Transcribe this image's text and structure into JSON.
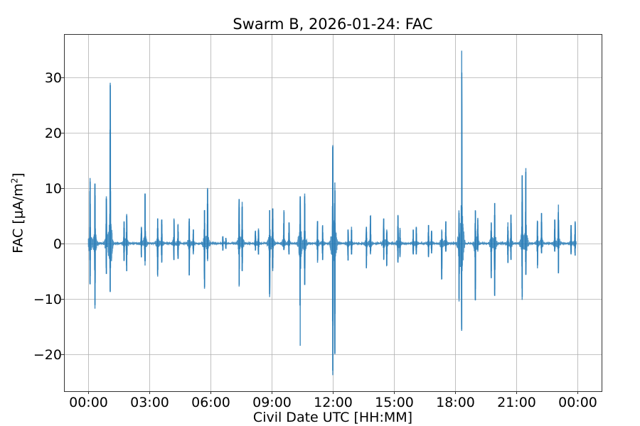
{
  "chart_data": {
    "type": "line",
    "title": "Swarm B, 2026-01-24: FAC",
    "xlabel": "Civil Date UTC [HH:MM]",
    "ylabel": "FAC [μA/m²]",
    "ylabel_base": "FAC [μA/m",
    "ylabel_sup": "2",
    "ylabel_close": "]",
    "xlim_hours": [
      -1.2,
      25.2
    ],
    "ylim": [
      -26.7,
      37.8
    ],
    "grid": true,
    "legend": null,
    "line_color": "#1f77b4",
    "line_alpha": 0.8,
    "x_ticks": [
      {
        "hour": 0,
        "label": "00:00"
      },
      {
        "hour": 3,
        "label": "03:00"
      },
      {
        "hour": 6,
        "label": "06:00"
      },
      {
        "hour": 9,
        "label": "09:00"
      },
      {
        "hour": 12,
        "label": "12:00"
      },
      {
        "hour": 15,
        "label": "15:00"
      },
      {
        "hour": 18,
        "label": "18:00"
      },
      {
        "hour": 21,
        "label": "21:00"
      },
      {
        "hour": 24,
        "label": "00:00"
      }
    ],
    "y_ticks": [
      {
        "value": 30,
        "label": "30"
      },
      {
        "value": 20,
        "label": "20"
      },
      {
        "value": 10,
        "label": "10"
      },
      {
        "value": 0,
        "label": "0"
      },
      {
        "value": -10,
        "label": "−10"
      },
      {
        "value": -20,
        "label": "−20"
      }
    ],
    "series": [
      {
        "name": "FAC",
        "description": "Field-aligned current bursts at each auroral-oval crossing; near zero between",
        "bursts": [
          {
            "t": 0.08,
            "max": 11.8,
            "min": -7.4
          },
          {
            "t": 0.32,
            "max": 10.8,
            "min": -11.8
          },
          {
            "t": 0.88,
            "max": 8.5,
            "min": -5.5
          },
          {
            "t": 1.07,
            "max": 29.0,
            "min": -8.8
          },
          {
            "t": 1.75,
            "max": 4.0,
            "min": -3.2
          },
          {
            "t": 1.88,
            "max": 5.3,
            "min": -5.0
          },
          {
            "t": 2.6,
            "max": 3.0,
            "min": -2.5
          },
          {
            "t": 2.78,
            "max": 9.0,
            "min": -4.0
          },
          {
            "t": 3.4,
            "max": 4.5,
            "min": -6.0
          },
          {
            "t": 3.6,
            "max": 4.3,
            "min": -3.5
          },
          {
            "t": 4.2,
            "max": 4.5,
            "min": -3.0
          },
          {
            "t": 4.4,
            "max": 3.5,
            "min": -2.8
          },
          {
            "t": 4.95,
            "max": 4.5,
            "min": -5.8
          },
          {
            "t": 5.15,
            "max": 2.5,
            "min": -2.0
          },
          {
            "t": 5.7,
            "max": 6.0,
            "min": -8.2
          },
          {
            "t": 5.85,
            "max": 10.0,
            "min": -3.2
          },
          {
            "t": 6.6,
            "max": 1.3,
            "min": -1.3
          },
          {
            "t": 6.75,
            "max": 1.0,
            "min": -1.0
          },
          {
            "t": 7.4,
            "max": 8.0,
            "min": -7.8
          },
          {
            "t": 7.55,
            "max": 7.5,
            "min": -5.0
          },
          {
            "t": 8.2,
            "max": 2.3,
            "min": -1.3
          },
          {
            "t": 8.35,
            "max": 2.7,
            "min": -2.0
          },
          {
            "t": 8.9,
            "max": 6.0,
            "min": -9.7
          },
          {
            "t": 9.05,
            "max": 6.3,
            "min": -5.0
          },
          {
            "t": 9.6,
            "max": 6.0,
            "min": -1.2
          },
          {
            "t": 9.85,
            "max": 3.8,
            "min": -2.0
          },
          {
            "t": 10.4,
            "max": 8.5,
            "min": -18.5
          },
          {
            "t": 10.62,
            "max": 9.0,
            "min": -7.5
          },
          {
            "t": 11.25,
            "max": 4.0,
            "min": -3.5
          },
          {
            "t": 11.5,
            "max": 3.3,
            "min": -3.0
          },
          {
            "t": 12.0,
            "max": 17.5,
            "min": -23.8
          },
          {
            "t": 12.1,
            "max": 11.0,
            "min": -20.0
          },
          {
            "t": 12.75,
            "max": 2.5,
            "min": -3.1
          },
          {
            "t": 12.92,
            "max": 3.0,
            "min": -2.0
          },
          {
            "t": 13.65,
            "max": 3.0,
            "min": -4.5
          },
          {
            "t": 13.85,
            "max": 5.0,
            "min": -2.0
          },
          {
            "t": 14.5,
            "max": 4.5,
            "min": -3.0
          },
          {
            "t": 14.65,
            "max": 2.5,
            "min": -4.0
          },
          {
            "t": 15.2,
            "max": 5.0,
            "min": -3.5
          },
          {
            "t": 15.3,
            "max": 2.8,
            "min": -2.5
          },
          {
            "t": 15.95,
            "max": 2.5,
            "min": -2.0
          },
          {
            "t": 16.1,
            "max": 3.0,
            "min": -2.0
          },
          {
            "t": 16.7,
            "max": 3.3,
            "min": -2.5
          },
          {
            "t": 16.85,
            "max": 2.3,
            "min": -1.8
          },
          {
            "t": 17.35,
            "max": 2.5,
            "min": -6.5
          },
          {
            "t": 17.55,
            "max": 4.0,
            "min": -1.5
          },
          {
            "t": 18.2,
            "max": 5.5,
            "min": -10.5
          },
          {
            "t": 18.33,
            "max": 34.8,
            "min": -15.8
          },
          {
            "t": 19.0,
            "max": 6.0,
            "min": -10.3
          },
          {
            "t": 19.12,
            "max": 4.3,
            "min": -1.5
          },
          {
            "t": 19.78,
            "max": 3.8,
            "min": -6.3
          },
          {
            "t": 19.95,
            "max": 7.3,
            "min": -9.5
          },
          {
            "t": 20.6,
            "max": 3.8,
            "min": -3.5
          },
          {
            "t": 20.75,
            "max": 5.2,
            "min": -3.0
          },
          {
            "t": 21.3,
            "max": 12.3,
            "min": -10.2
          },
          {
            "t": 21.48,
            "max": 13.6,
            "min": -5.7
          },
          {
            "t": 22.05,
            "max": 4.0,
            "min": -4.5
          },
          {
            "t": 22.25,
            "max": 5.5,
            "min": -1.8
          },
          {
            "t": 22.9,
            "max": 4.3,
            "min": -1.5
          },
          {
            "t": 23.08,
            "max": 7.0,
            "min": -5.4
          },
          {
            "t": 23.7,
            "max": 3.3,
            "min": -2.0
          },
          {
            "t": 23.9,
            "max": 4.0,
            "min": -2.2
          }
        ]
      }
    ]
  }
}
